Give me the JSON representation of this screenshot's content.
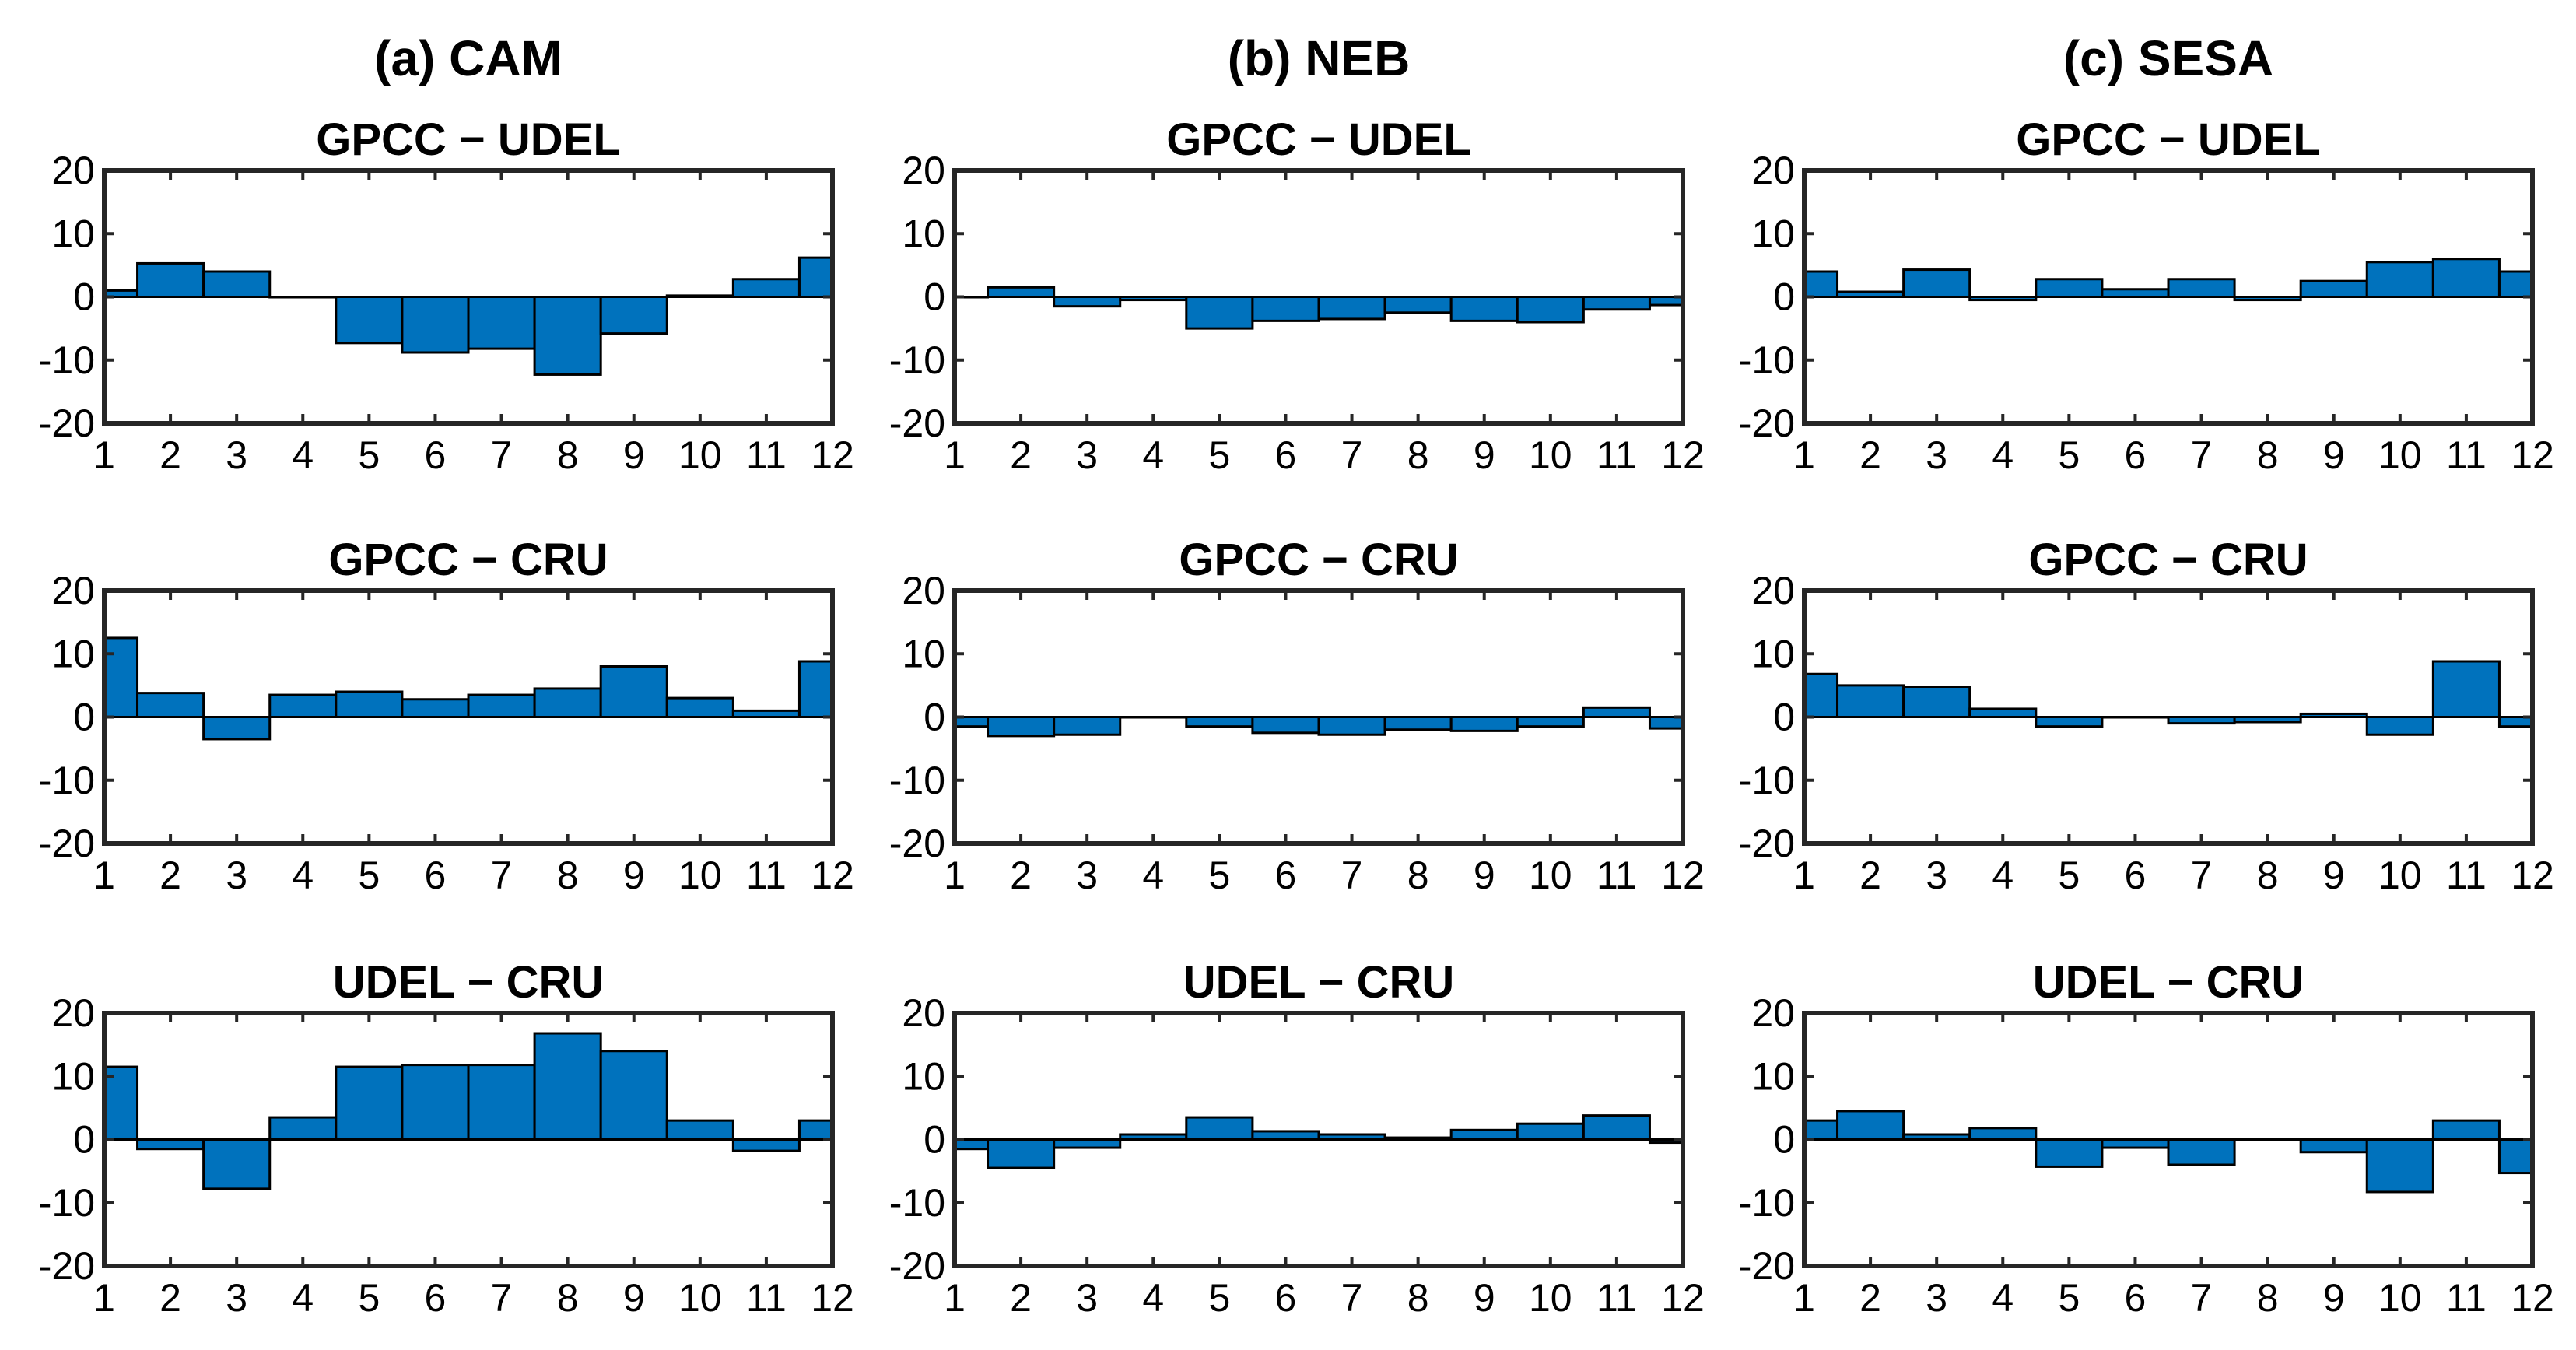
{
  "figure": {
    "columns": [
      {
        "title": "(a) CAM"
      },
      {
        "title": "(b) NEB"
      },
      {
        "title": "(c) SESA"
      }
    ],
    "bar_color": "#0072BD"
  },
  "chart_data": [
    {
      "type": "bar",
      "region": "CAM",
      "title": "GPCC − UDEL",
      "categories": [
        1,
        2,
        3,
        4,
        5,
        6,
        7,
        8,
        9,
        10,
        11,
        12
      ],
      "values": [
        1,
        5.3,
        4,
        0,
        -7.3,
        -8.8,
        -8.2,
        -12.3,
        -5.8,
        0.2,
        2.8,
        6.2
      ],
      "ylim": [
        -20,
        20
      ],
      "yticks": [
        20,
        10,
        0,
        -10,
        -20
      ],
      "xticks": [
        1,
        2,
        3,
        4,
        5,
        6,
        7,
        8,
        9,
        10,
        11,
        12
      ]
    },
    {
      "type": "bar",
      "region": "NEB",
      "title": "GPCC − UDEL",
      "categories": [
        1,
        2,
        3,
        4,
        5,
        6,
        7,
        8,
        9,
        10,
        11,
        12
      ],
      "values": [
        0,
        1.5,
        -1.5,
        -0.5,
        -5,
        -3.8,
        -3.5,
        -2.5,
        -3.8,
        -4,
        -2,
        -1.3
      ],
      "ylim": [
        -20,
        20
      ],
      "yticks": [
        20,
        10,
        0,
        -10,
        -20
      ],
      "xticks": [
        1,
        2,
        3,
        4,
        5,
        6,
        7,
        8,
        9,
        10,
        11,
        12
      ]
    },
    {
      "type": "bar",
      "region": "SESA",
      "title": "GPCC − UDEL",
      "categories": [
        1,
        2,
        3,
        4,
        5,
        6,
        7,
        8,
        9,
        10,
        11,
        12
      ],
      "values": [
        4,
        0.8,
        4.3,
        -0.5,
        2.8,
        1.2,
        2.8,
        -0.5,
        2.5,
        5.5,
        6,
        4
      ],
      "ylim": [
        -20,
        20
      ],
      "yticks": [
        20,
        10,
        0,
        -10,
        -20
      ],
      "xticks": [
        1,
        2,
        3,
        4,
        5,
        6,
        7,
        8,
        9,
        10,
        11,
        12
      ]
    },
    {
      "type": "bar",
      "region": "CAM",
      "title": "GPCC − CRU",
      "categories": [
        1,
        2,
        3,
        4,
        5,
        6,
        7,
        8,
        9,
        10,
        11,
        12
      ],
      "values": [
        12.5,
        3.8,
        -3.5,
        3.5,
        4,
        2.8,
        3.5,
        4.5,
        8,
        3,
        1,
        8.8
      ],
      "ylim": [
        -20,
        20
      ],
      "yticks": [
        20,
        10,
        0,
        -10,
        -20
      ],
      "xticks": [
        1,
        2,
        3,
        4,
        5,
        6,
        7,
        8,
        9,
        10,
        11,
        12
      ]
    },
    {
      "type": "bar",
      "region": "NEB",
      "title": "GPCC − CRU",
      "categories": [
        1,
        2,
        3,
        4,
        5,
        6,
        7,
        8,
        9,
        10,
        11,
        12
      ],
      "values": [
        -1.5,
        -3,
        -2.8,
        0,
        -1.5,
        -2.5,
        -2.8,
        -2,
        -2.2,
        -1.5,
        1.5,
        -1.8
      ],
      "ylim": [
        -20,
        20
      ],
      "yticks": [
        20,
        10,
        0,
        -10,
        -20
      ],
      "xticks": [
        1,
        2,
        3,
        4,
        5,
        6,
        7,
        8,
        9,
        10,
        11,
        12
      ]
    },
    {
      "type": "bar",
      "region": "SESA",
      "title": "GPCC − CRU",
      "categories": [
        1,
        2,
        3,
        4,
        5,
        6,
        7,
        8,
        9,
        10,
        11,
        12
      ],
      "values": [
        6.8,
        5,
        4.8,
        1.3,
        -1.5,
        0,
        -1,
        -0.8,
        0.5,
        -2.8,
        8.8,
        -1.5
      ],
      "ylim": [
        -20,
        20
      ],
      "yticks": [
        20,
        10,
        0,
        -10,
        -20
      ],
      "xticks": [
        1,
        2,
        3,
        4,
        5,
        6,
        7,
        8,
        9,
        10,
        11,
        12
      ]
    },
    {
      "type": "bar",
      "region": "CAM",
      "title": "UDEL − CRU",
      "categories": [
        1,
        2,
        3,
        4,
        5,
        6,
        7,
        8,
        9,
        10,
        11,
        12
      ],
      "values": [
        11.5,
        -1.5,
        -7.8,
        3.5,
        11.5,
        11.8,
        11.8,
        16.8,
        14,
        3,
        -1.8,
        3
      ],
      "ylim": [
        -20,
        20
      ],
      "yticks": [
        20,
        10,
        0,
        -10,
        -20
      ],
      "xticks": [
        1,
        2,
        3,
        4,
        5,
        6,
        7,
        8,
        9,
        10,
        11,
        12
      ]
    },
    {
      "type": "bar",
      "region": "NEB",
      "title": "UDEL − CRU",
      "categories": [
        1,
        2,
        3,
        4,
        5,
        6,
        7,
        8,
        9,
        10,
        11,
        12
      ],
      "values": [
        -1.5,
        -4.5,
        -1.3,
        0.8,
        3.5,
        1.3,
        0.8,
        0.3,
        1.5,
        2.5,
        3.8,
        -0.5
      ],
      "ylim": [
        -20,
        20
      ],
      "yticks": [
        20,
        10,
        0,
        -10,
        -20
      ],
      "xticks": [
        1,
        2,
        3,
        4,
        5,
        6,
        7,
        8,
        9,
        10,
        11,
        12
      ]
    },
    {
      "type": "bar",
      "region": "SESA",
      "title": "UDEL − CRU",
      "categories": [
        1,
        2,
        3,
        4,
        5,
        6,
        7,
        8,
        9,
        10,
        11,
        12
      ],
      "values": [
        3,
        4.5,
        0.8,
        1.8,
        -4.3,
        -1.3,
        -4,
        0,
        -2,
        -8.3,
        3,
        -5.3
      ],
      "ylim": [
        -20,
        20
      ],
      "yticks": [
        20,
        10,
        0,
        -10,
        -20
      ],
      "xticks": [
        1,
        2,
        3,
        4,
        5,
        6,
        7,
        8,
        9,
        10,
        11,
        12
      ]
    }
  ]
}
